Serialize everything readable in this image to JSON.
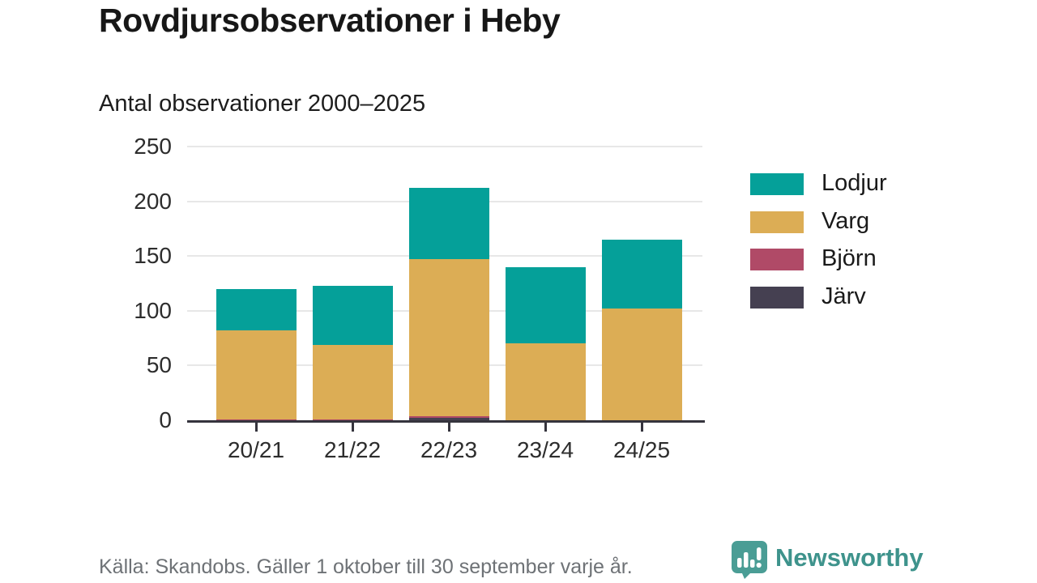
{
  "title": "Rovdjursobservationer i Heby",
  "subtitle": "Antal observationer 2000–2025",
  "footer": {
    "source": "Källa: Skandobs. Gäller 1 oktober till 30 september varje år."
  },
  "branding": {
    "name": "Newsworthy",
    "logo_icon": "speech-bubble-bar-chart-icon",
    "color": "#3e938c",
    "logo_fill": "#4a9d95"
  },
  "chart_data": {
    "type": "bar",
    "stacked": true,
    "title": "Rovdjursobservationer i Heby",
    "subtitle": "Antal observationer 2000–2025",
    "xlabel": "",
    "ylabel": "",
    "categories": [
      "20/21",
      "21/22",
      "22/23",
      "23/24",
      "24/25"
    ],
    "series": [
      {
        "name": "Lodjur",
        "color": "#05a099",
        "values": [
          38,
          54,
          65,
          70,
          63
        ]
      },
      {
        "name": "Varg",
        "color": "#dcad55",
        "values": [
          81,
          68,
          143,
          70,
          102
        ]
      },
      {
        "name": "Björn",
        "color": "#b04a67",
        "values": [
          1,
          1,
          2,
          0,
          0
        ]
      },
      {
        "name": "Järv",
        "color": "#454051",
        "values": [
          0,
          0,
          2,
          0,
          0
        ]
      }
    ],
    "stack_order_bottom_to_top": [
      "Järv",
      "Björn",
      "Varg",
      "Lodjur"
    ],
    "totals": [
      120,
      123,
      212,
      140,
      165
    ],
    "y_ticks": [
      0,
      50,
      100,
      150,
      200,
      250
    ],
    "ylim": [
      0,
      250
    ],
    "grid": true,
    "legend_position": "right"
  }
}
